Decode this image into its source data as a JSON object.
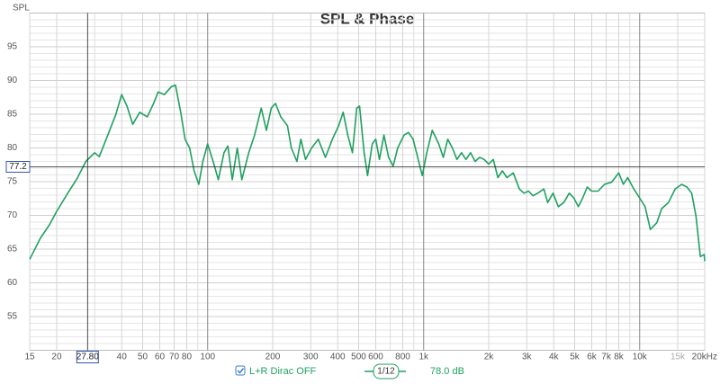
{
  "chart_data": {
    "type": "line",
    "title": "SPL & Phase",
    "y_axis_label": "SPL",
    "xscale": "log",
    "grid": true,
    "xlim": [
      15,
      20000
    ],
    "ylim": [
      50,
      100
    ],
    "xticks": [
      15,
      20,
      40,
      50,
      60,
      70,
      80,
      100,
      200,
      300,
      400,
      500,
      600,
      800,
      {
        "value": 1000,
        "label": "1k"
      },
      {
        "value": 2000,
        "label": "2k"
      },
      {
        "value": 3000,
        "label": "3k"
      },
      {
        "value": 4000,
        "label": "4k"
      },
      {
        "value": 5000,
        "label": "5k"
      },
      {
        "value": 6000,
        "label": "6k"
      },
      {
        "value": 7000,
        "label": "7k"
      },
      {
        "value": 8000,
        "label": "8k"
      },
      {
        "value": 10000,
        "label": "10k"
      },
      {
        "value": 15000,
        "label": "15k"
      },
      {
        "value": 20000,
        "label": "20kHz"
      }
    ],
    "x_minor_ticks": [
      30,
      90,
      700,
      900,
      9000
    ],
    "yticks": [
      55,
      60,
      65,
      70,
      75,
      80,
      85,
      90,
      95
    ],
    "y_minor_ticks": [
      51,
      52,
      53,
      54,
      56,
      57,
      58,
      59,
      61,
      62,
      63,
      64,
      66,
      67,
      68,
      69,
      71,
      72,
      73,
      74,
      76,
      77,
      78,
      79,
      81,
      82,
      83,
      84,
      86,
      87,
      88,
      89,
      91,
      92,
      93,
      94,
      96,
      97,
      98,
      99
    ],
    "cursor": {
      "x": {
        "value": 27.8,
        "label": "27.80"
      },
      "y": 77.2
    },
    "x": [
      15,
      16.8,
      18.5,
      20,
      22.5,
      24.9,
      27.3,
      30,
      31.5,
      34.5,
      37.5,
      40,
      42.3,
      45,
      48.5,
      52.5,
      56.2,
      59,
      63,
      68,
      71,
      75,
      78.6,
      82.5,
      86.6,
      91,
      95,
      100,
      106,
      112,
      119,
      124,
      130,
      137,
      144,
      155,
      165,
      177,
      187,
      197,
      206,
      218,
      234,
      244,
      259,
      270,
      284,
      303,
      325,
      351,
      378,
      404,
      424,
      445,
      468,
      490,
      505,
      530,
      550,
      578,
      600,
      624,
      655,
      688,
      722,
      758,
      811,
      851,
      893,
      938,
      985,
      1034,
      1096,
      1174,
      1232,
      1293,
      1357,
      1425,
      1496,
      1570,
      1648,
      1730,
      1816,
      1906,
      2000,
      2100,
      2205,
      2314,
      2430,
      2600,
      2775,
      2912,
      3056,
      3210,
      3370,
      3600,
      3750,
      3970,
      4200,
      4450,
      4720,
      4950,
      5200,
      5450,
      5720,
      6000,
      6420,
      6870,
      7410,
      8000,
      8400,
      8800,
      9400,
      9990,
      10600,
      11200,
      12000,
      12640,
      13600,
      14600,
      15640,
      16560,
      17400,
      18230,
      19100,
      19900,
      20000
    ],
    "series": [
      {
        "name": "L+R Dirac OFF",
        "color": "#20a060",
        "values": [
          63.5,
          66.6,
          68.6,
          70.6,
          73.3,
          75.5,
          78,
          79.3,
          78.7,
          81.9,
          84.9,
          87.9,
          86.2,
          83.5,
          85.3,
          84.6,
          86.6,
          88.3,
          87.9,
          89.1,
          89.3,
          85.3,
          81.3,
          80,
          76.6,
          74.6,
          78,
          80.6,
          78,
          75.3,
          79.3,
          80.3,
          75.3,
          80,
          75.3,
          79.3,
          81.9,
          85.9,
          82.6,
          85.9,
          86.6,
          84.6,
          83.3,
          80,
          78,
          81.3,
          78.3,
          80,
          81.3,
          78.6,
          81.3,
          83.3,
          85.3,
          81.9,
          79.3,
          85.9,
          86.2,
          79.3,
          75.9,
          80.6,
          81.3,
          78.3,
          81.9,
          78.6,
          77.3,
          80,
          81.9,
          82.3,
          81.3,
          78.6,
          75.9,
          79.3,
          82.6,
          80.6,
          78.6,
          81.3,
          80,
          78.3,
          79.3,
          78.3,
          79.3,
          78,
          78.6,
          78.3,
          77.6,
          78.3,
          75.6,
          76.6,
          75.6,
          76.3,
          73.9,
          73.3,
          73.6,
          72.9,
          73.3,
          73.9,
          71.9,
          73.3,
          71.3,
          71.9,
          73.3,
          72.6,
          71.3,
          72.6,
          74.2,
          73.6,
          73.6,
          74.6,
          74.9,
          76.3,
          74.6,
          75.6,
          73.9,
          72.6,
          71.3,
          67.9,
          68.9,
          71,
          71.9,
          73.9,
          74.6,
          74.2,
          73.3,
          69.9,
          63.9,
          64.2,
          63.2
        ]
      }
    ],
    "smoothing": "1/12",
    "offset_label": "78.0 dB"
  }
}
